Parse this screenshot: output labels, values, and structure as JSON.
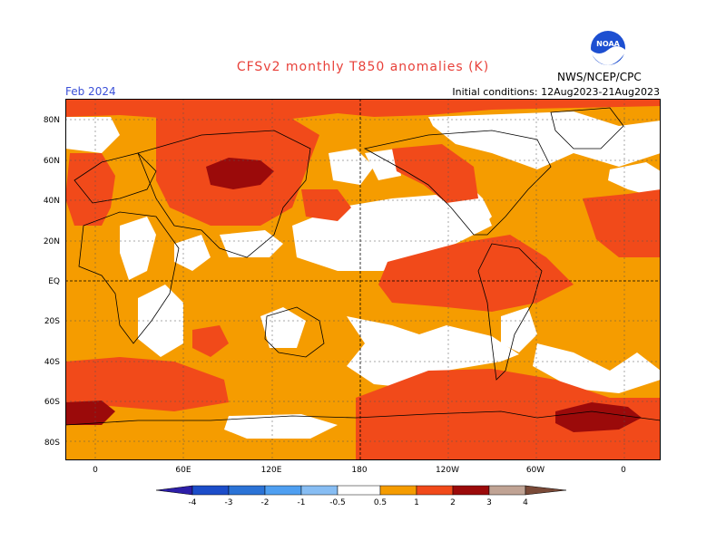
{
  "map": {
    "title": "CFSv2 monthly T850 anomalies (K)",
    "valid_month": "Feb 2024",
    "initial_conditions": "Initial conditions: 12Aug2023-21Aug2023",
    "agency": "NWS/NCEP/CPC",
    "logo_text": "NOAA",
    "lat_labels": [
      "80N",
      "60N",
      "40N",
      "20N",
      "EQ",
      "20S",
      "40S",
      "60S",
      "80S"
    ],
    "lon_labels": [
      "0",
      "60E",
      "120E",
      "180",
      "120W",
      "60W",
      "0"
    ],
    "colors": {
      "white": "#ffffff",
      "c0_5": "#f59c00",
      "c1": "#f14a1a",
      "c2": "#9b0a0a",
      "c3": "#c0a394",
      "c4": "#7a4a38",
      "neg1": "#4f9ff1",
      "neg2": "#2b73d6",
      "neg3": "#1c4dc9",
      "neg4": "#2d1ea8"
    }
  },
  "legend": {
    "labels": [
      "-4",
      "-3",
      "-2",
      "-1",
      "-0.5",
      "0.5",
      "1",
      "2",
      "3",
      "4"
    ]
  }
}
